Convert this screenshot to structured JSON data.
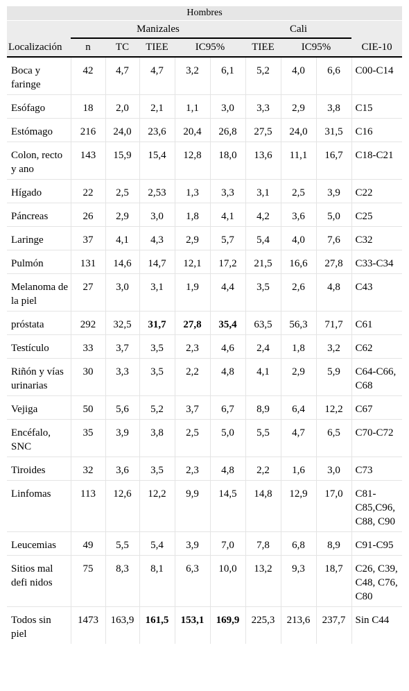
{
  "header": {
    "sex": "Hombres",
    "group_manizales": "Manizales",
    "group_cali": "Cali",
    "localizacion": "Localización",
    "cie": "CIE-10",
    "n": "n",
    "tc": "TC",
    "tiee_m": "TIEE",
    "ic_m": "IC95%",
    "tiee_c": "TIEE",
    "ic_c": "IC95%"
  },
  "rows": [
    {
      "loc": "Boca y faringe",
      "n": "42",
      "tc": "4,7",
      "tiee": "4,7",
      "ic1": "3,2",
      "ic2": "6,1",
      "ctiee": "5,2",
      "cic1": "4,0",
      "cic2": "6,6",
      "cie": "C00-C14"
    },
    {
      "loc": "Esófago",
      "n": "18",
      "tc": "2,0",
      "tiee": "2,1",
      "ic1": "1,1",
      "ic2": "3,0",
      "ctiee": "3,3",
      "cic1": "2,9",
      "cic2": "3,8",
      "cie": "C15"
    },
    {
      "loc": "Estómago",
      "n": "216",
      "tc": "24,0",
      "tiee": "23,6",
      "ic1": "20,4",
      "ic2": "26,8",
      "ctiee": "27,5",
      "cic1": "24,0",
      "cic2": "31,5",
      "cie": "C16"
    },
    {
      "loc": "Colon, recto y ano",
      "n": "143",
      "tc": "15,9",
      "tiee": "15,4",
      "ic1": "12,8",
      "ic2": "18,0",
      "ctiee": "13,6",
      "cic1": "11,1",
      "cic2": "16,7",
      "cie": "C18-C21"
    },
    {
      "loc": "Hígado",
      "n": "22",
      "tc": "2,5",
      "tiee": "2,53",
      "ic1": "1,3",
      "ic2": "3,3",
      "ctiee": "3,1",
      "cic1": "2,5",
      "cic2": "3,9",
      "cie": "C22"
    },
    {
      "loc": "Páncreas",
      "n": "26",
      "tc": "2,9",
      "tiee": "3,0",
      "ic1": "1,8",
      "ic2": "4,1",
      "ctiee": "4,2",
      "cic1": "3,6",
      "cic2": "5,0",
      "cie": "C25"
    },
    {
      "loc": "Laringe",
      "n": "37",
      "tc": "4,1",
      "tiee": "4,3",
      "ic1": "2,9",
      "ic2": "5,7",
      "ctiee": "5,4",
      "cic1": "4,0",
      "cic2": "7,6",
      "cie": "C32"
    },
    {
      "loc": "Pulmón",
      "n": "131",
      "tc": "14,6",
      "tiee": "14,7",
      "ic1": "12,1",
      "ic2": "17,2",
      "ctiee": "21,5",
      "cic1": "16,6",
      "cic2": "27,8",
      "cie": "C33-C34"
    },
    {
      "loc": "Melanoma de la piel",
      "n": "27",
      "tc": "3,0",
      "tiee": "3,1",
      "ic1": "1,9",
      "ic2": "4,4",
      "ctiee": "3,5",
      "cic1": "2,6",
      "cic2": "4,8",
      "cie": "C43"
    },
    {
      "loc": "próstata",
      "n": "292",
      "tc": "32,5",
      "tiee": "31,7",
      "ic1": "27,8",
      "ic2": "35,4",
      "ctiee": "63,5",
      "cic1": "56,3",
      "cic2": "71,7",
      "cie": "C61",
      "bold": true
    },
    {
      "loc": "Testículo",
      "n": "33",
      "tc": "3,7",
      "tiee": "3,5",
      "ic1": "2,3",
      "ic2": "4,6",
      "ctiee": "2,4",
      "cic1": "1,8",
      "cic2": "3,2",
      "cie": "C62"
    },
    {
      "loc": "Riñón y vías urinarias",
      "n": "30",
      "tc": "3,3",
      "tiee": "3,5",
      "ic1": "2,2",
      "ic2": "4,8",
      "ctiee": "4,1",
      "cic1": "2,9",
      "cic2": "5,9",
      "cie": "C64-C66, C68"
    },
    {
      "loc": "Vejiga",
      "n": "50",
      "tc": "5,6",
      "tiee": "5,2",
      "ic1": "3,7",
      "ic2": "6,7",
      "ctiee": "8,9",
      "cic1": "6,4",
      "cic2": "12,2",
      "cie": "C67"
    },
    {
      "loc": "Encéfalo, SNC",
      "n": "35",
      "tc": "3,9",
      "tiee": "3,8",
      "ic1": "2,5",
      "ic2": "5,0",
      "ctiee": "5,5",
      "cic1": "4,7",
      "cic2": "6,5",
      "cie": "C70-C72"
    },
    {
      "loc": "Tiroides",
      "n": "32",
      "tc": "3,6",
      "tiee": "3,5",
      "ic1": "2,3",
      "ic2": "4,8",
      "ctiee": "2,2",
      "cic1": "1,6",
      "cic2": "3,0",
      "cie": "C73"
    },
    {
      "loc": "Linfomas",
      "n": "113",
      "tc": "12,6",
      "tiee": "12,2",
      "ic1": "9,9",
      "ic2": "14,5",
      "ctiee": "14,8",
      "cic1": "12,9",
      "cic2": "17,0",
      "cie": "C81-C85,C96, C88, C90"
    },
    {
      "loc": "Leucemias",
      "n": "49",
      "tc": "5,5",
      "tiee": "5,4",
      "ic1": "3,9",
      "ic2": "7,0",
      "ctiee": "7,8",
      "cic1": "6,8",
      "cic2": "8,9",
      "cie": "C91-C95"
    },
    {
      "loc": "Sitios mal defi nidos",
      "n": "75",
      "tc": "8,3",
      "tiee": "8,1",
      "ic1": "6,3",
      "ic2": "10,0",
      "ctiee": "13,2",
      "cic1": "9,3",
      "cic2": "18,7",
      "cie": "C26, C39, C48, C76, C80"
    },
    {
      "loc": "Todos sin piel",
      "n": "1473",
      "tc": "163,9",
      "tiee": "161,5",
      "ic1": "153,1",
      "ic2": "169,9",
      "ctiee": "225,3",
      "cic1": "213,6",
      "cic2": "237,7",
      "cie": "Sin C44",
      "bold": true
    }
  ]
}
